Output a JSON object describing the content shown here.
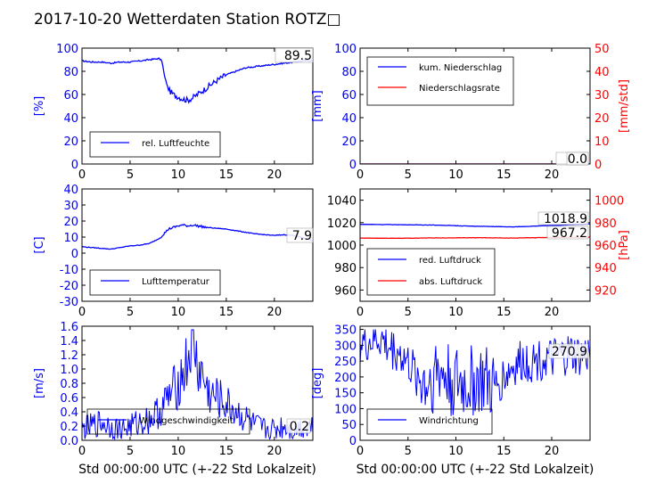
{
  "title": "2017-10-20 Wetterdaten Station ROTZ□",
  "colors": {
    "blue": "#0000ff",
    "red": "#ff0000",
    "black": "#000000"
  },
  "chart_data": [
    {
      "type": "line",
      "id": "humidity",
      "ylabel": "[%]",
      "xlim": [
        0,
        24
      ],
      "ylim": [
        0,
        100
      ],
      "x_ticks": [
        0,
        5,
        10,
        15,
        20
      ],
      "y_ticks": [
        0,
        20,
        40,
        60,
        80,
        100
      ],
      "legend": "bottom-left",
      "current_value": "89.5",
      "series": [
        {
          "name": "rel. Luftfeuchte",
          "color": "#0000ff",
          "x": [
            0,
            1,
            2,
            3,
            4,
            5,
            6,
            7,
            8,
            8.3,
            8.6,
            9,
            9.5,
            10,
            10.5,
            11,
            11.5,
            12,
            13,
            14,
            15,
            16,
            17,
            18,
            19,
            20,
            21,
            22,
            23,
            24
          ],
          "y": [
            89,
            88,
            88,
            87,
            88,
            88,
            89,
            90,
            91,
            89,
            75,
            64,
            60,
            58,
            56,
            55,
            57,
            60,
            66,
            72,
            77,
            80,
            83,
            84,
            85,
            86,
            87,
            88,
            89,
            89.5
          ]
        }
      ]
    },
    {
      "type": "line",
      "id": "precipitation",
      "ylabel": "[mm]",
      "y2label": "[mm/std]",
      "xlim": [
        0,
        24
      ],
      "ylim": [
        0,
        100
      ],
      "y2lim": [
        0,
        50
      ],
      "x_ticks": [
        0,
        5,
        10,
        15,
        20
      ],
      "y_ticks": [
        0,
        20,
        40,
        60,
        80,
        100
      ],
      "y2_ticks": [
        0,
        10,
        20,
        30,
        40,
        50
      ],
      "legend": "top-left",
      "current_values": [
        "0.0",
        "0.0"
      ],
      "series": [
        {
          "name": "kum. Niederschlag",
          "color": "#0000ff",
          "axis": "left",
          "x": [
            0,
            24
          ],
          "y": [
            0,
            0
          ]
        },
        {
          "name": "Niederschlagsrate",
          "color": "#ff0000",
          "axis": "right",
          "x": [
            0,
            24
          ],
          "y": [
            0,
            0
          ]
        }
      ]
    },
    {
      "type": "line",
      "id": "temperature",
      "ylabel": "[C]",
      "xlim": [
        0,
        24
      ],
      "ylim": [
        -30,
        40
      ],
      "x_ticks": [
        0,
        5,
        10,
        15,
        20
      ],
      "y_ticks": [
        -30,
        -20,
        -10,
        0,
        10,
        20,
        30,
        40
      ],
      "legend": "bottom-left",
      "current_value": "7.9",
      "series": [
        {
          "name": "Lufttemperatur",
          "color": "#0000ff",
          "x": [
            0,
            1,
            2,
            3,
            4,
            5,
            6,
            7,
            8,
            8.5,
            9,
            9.5,
            10,
            10.5,
            11,
            11.5,
            12,
            13,
            14,
            15,
            16,
            17,
            18,
            19,
            20,
            21,
            22,
            23,
            24
          ],
          "y": [
            4,
            3.5,
            3,
            2.5,
            3.5,
            4.5,
            5,
            6,
            9,
            12,
            15,
            16,
            17,
            17.5,
            17,
            17.5,
            17,
            16,
            15.5,
            15,
            14,
            13,
            12,
            11.5,
            11,
            11.5,
            11,
            9.5,
            7.9
          ]
        }
      ]
    },
    {
      "type": "line",
      "id": "pressure",
      "y2label": "[hPa]",
      "xlim": [
        0,
        24
      ],
      "ylim": [
        950,
        1050
      ],
      "y2lim": [
        910,
        1010
      ],
      "x_ticks": [
        0,
        5,
        10,
        15,
        20
      ],
      "y_ticks": [
        960,
        980,
        1000,
        1020,
        1040
      ],
      "y2_ticks": [
        920,
        940,
        960,
        980,
        1000
      ],
      "legend": "bottom-left",
      "current_values": [
        "1018.9",
        "967.2"
      ],
      "series": [
        {
          "name": "red. Luftdruck",
          "color": "#0000ff",
          "axis": "left",
          "x": [
            0,
            4,
            8,
            12,
            16,
            20,
            24
          ],
          "y": [
            1018.5,
            1018.2,
            1017.8,
            1016.8,
            1016.2,
            1017.5,
            1018.9
          ]
        },
        {
          "name": "abs. Luftdruck",
          "color": "#ff0000",
          "axis": "right",
          "x": [
            0,
            4,
            8,
            12,
            16,
            20,
            24
          ],
          "y": [
            966.2,
            966.1,
            966.4,
            966.6,
            966.3,
            966.8,
            967.2
          ]
        }
      ]
    },
    {
      "type": "line",
      "id": "wind_speed",
      "ylabel": "[m/s]",
      "xlabel": "Std 00:00:00 UTC (+-22 Std Lokalzeit)",
      "xlim": [
        0,
        24
      ],
      "ylim": [
        0,
        1.6
      ],
      "x_ticks": [
        0,
        5,
        10,
        15,
        20
      ],
      "y_ticks": [
        0.0,
        0.2,
        0.4,
        0.6,
        0.8,
        1.0,
        1.2,
        1.4,
        1.6
      ],
      "legend": "bottom-left",
      "current_value": "0.2",
      "series": [
        {
          "name": "Windgeschwindigkeit",
          "color": "#0000ff",
          "x": [
            0,
            1,
            2,
            3,
            4,
            5,
            6,
            7,
            8,
            9,
            10,
            11,
            11.5,
            12,
            12.5,
            13,
            13.5,
            14,
            15,
            16,
            17,
            18,
            19,
            20,
            21,
            22,
            23,
            24
          ],
          "y": [
            0.15,
            0.2,
            0.25,
            0.2,
            0.15,
            0.2,
            0.25,
            0.3,
            0.4,
            0.6,
            0.8,
            1.1,
            1.5,
            1.0,
            0.9,
            0.7,
            0.6,
            0.6,
            0.5,
            0.4,
            0.3,
            0.2,
            0.15,
            0.15,
            0.2,
            0.15,
            0.2,
            0.2
          ]
        }
      ]
    },
    {
      "type": "line",
      "id": "wind_direction",
      "ylabel": "[deg]",
      "xlabel": "Std 00:00:00 UTC (+-22 Std Lokalzeit)",
      "xlim": [
        0,
        24
      ],
      "ylim": [
        0,
        360
      ],
      "x_ticks": [
        0,
        5,
        10,
        15,
        20
      ],
      "y_ticks": [
        0,
        50,
        100,
        150,
        200,
        250,
        300,
        350
      ],
      "legend": "bottom-left",
      "current_value": "270.9",
      "series": [
        {
          "name": "Windrichtung",
          "color": "#0000ff",
          "x": [
            0,
            1,
            2,
            3,
            4,
            5,
            6,
            7,
            8,
            9,
            10,
            11,
            12,
            13,
            14,
            15,
            16,
            17,
            18,
            19,
            20,
            21,
            22,
            23,
            24
          ],
          "y": [
            300,
            310,
            320,
            290,
            280,
            240,
            200,
            180,
            220,
            200,
            180,
            170,
            190,
            180,
            160,
            200,
            230,
            250,
            250,
            260,
            250,
            260,
            270,
            260,
            270.9
          ]
        }
      ]
    }
  ]
}
